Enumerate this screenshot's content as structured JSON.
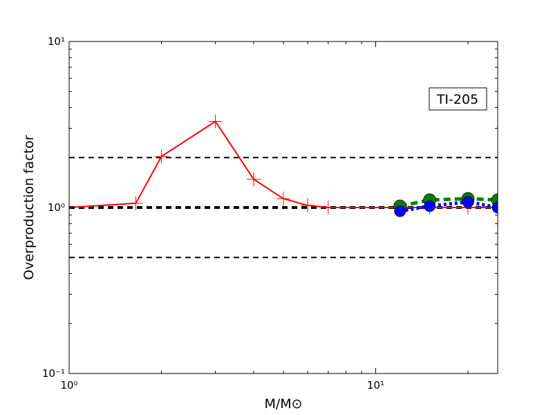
{
  "chart_data": {
    "type": "line",
    "xlabel": "M/M⊙",
    "ylabel": "Overproduction factor",
    "annotation": "TI-205",
    "xlog": true,
    "ylog": true,
    "xlim": [
      1,
      25
    ],
    "ylim": [
      0.1,
      10
    ],
    "xticks": [
      {
        "value": 1,
        "label": "10⁰"
      },
      {
        "value": 10,
        "label": "10¹"
      }
    ],
    "yticks": [
      {
        "value": 0.1,
        "label": "10⁻¹"
      },
      {
        "value": 1,
        "label": "10⁰"
      },
      {
        "value": 10,
        "label": "10¹"
      }
    ],
    "xminorticks": [
      2,
      3,
      4,
      5,
      6,
      7,
      8,
      9,
      20
    ],
    "yminorticks": [
      0.2,
      0.3,
      0.4,
      0.5,
      0.6,
      0.7,
      0.8,
      0.9,
      2,
      3,
      4,
      5,
      6,
      7,
      8,
      9
    ],
    "hlines": [
      2,
      1,
      0.5
    ],
    "series": [
      {
        "color": "#ff0000",
        "marker": "plus",
        "dash": "solid",
        "x": [
          1,
          1.65,
          2,
          3,
          4,
          5,
          6,
          7,
          12,
          15,
          20,
          25
        ],
        "values": [
          1.0,
          1.06,
          2.03,
          3.3,
          1.48,
          1.13,
          1.03,
          1.0,
          1.0,
          1.0,
          1.0,
          1.0
        ]
      },
      {
        "color": "#008000",
        "marker": "circle",
        "dash": "dashed",
        "x": [
          12,
          15,
          20,
          25
        ],
        "values": [
          1.02,
          1.11,
          1.13,
          1.11
        ]
      },
      {
        "color": "#0000ff",
        "marker": "circle",
        "dash": "dotted",
        "x": [
          12,
          15,
          20,
          25
        ],
        "values": [
          0.95,
          1.02,
          1.08,
          1.0
        ]
      }
    ]
  }
}
